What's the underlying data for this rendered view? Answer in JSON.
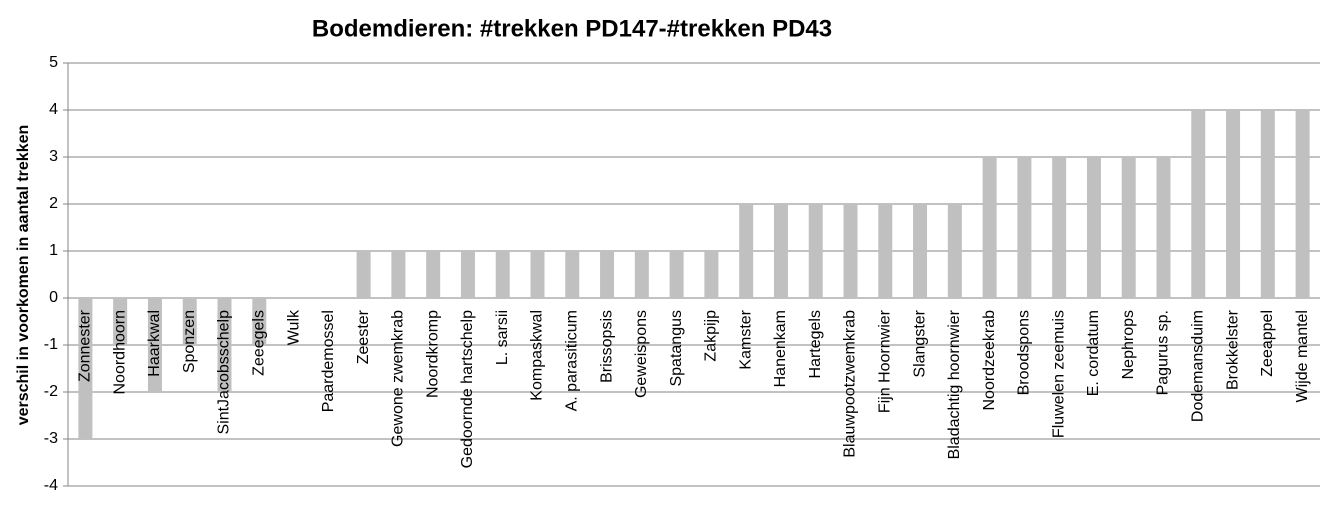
{
  "chart_data": {
    "type": "bar",
    "title": "Bodemdieren:  #trekken PD147-#trekken PD43",
    "y_label": "verschil in voorkomen in aantal trekken",
    "categories": [
      "Zonnester",
      "Noordhoorn",
      "Haarkwal",
      "Sponzen",
      "SintJacobsschelp",
      "Zeeegels",
      "Wulk",
      "Paardemossel",
      "Zeester",
      "Gewone zwemkrab",
      "Noordkromp",
      "Gedoornde hartschelp",
      "L. sarsii",
      "Kompaskwal",
      "A. parasiticum",
      "Brissopsis",
      "Geweispons",
      "Spatangus",
      "Zakpijp",
      "Kamster",
      "Hanenkam",
      "Hartegels",
      "Blauwpootzwemkrab",
      "Fijn Hoornwier",
      "Slangster",
      "Bladachtig hoornwier",
      "Noordzeekrab",
      "Broodspons",
      "Fluwelen zeemuis",
      "E. cordatum",
      "Nephrops",
      "Pagurus sp.",
      "Dodemansduim",
      "Brokkelster",
      "Zeeappel",
      "Wijde mantel"
    ],
    "values": [
      -3,
      -1,
      -2,
      -1,
      -2,
      -1,
      0,
      0,
      1,
      1,
      1,
      1,
      1,
      1,
      1,
      1,
      1,
      1,
      1,
      2,
      2,
      2,
      2,
      2,
      2,
      2,
      3,
      3,
      3,
      3,
      3,
      3,
      4,
      4,
      4,
      4
    ],
    "color": "#c0c0c0",
    "ylim": [
      -4,
      5
    ],
    "yticks": [
      -4,
      -3,
      -2,
      -1,
      0,
      1,
      2,
      3,
      4,
      5
    ],
    "grid": true
  }
}
